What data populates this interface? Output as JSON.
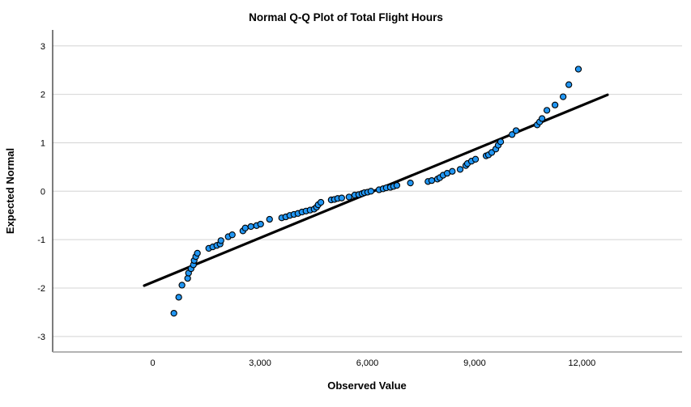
{
  "title": "Normal Q-Q Plot of Total Flight Hours",
  "chart_data": {
    "type": "scatter",
    "title": "Normal Q-Q Plot of Total Flight Hours",
    "xlabel": "Observed Value",
    "ylabel": "Expected Normal",
    "xlim": [
      -2800,
      14800
    ],
    "ylim": [
      -3.32,
      3.33
    ],
    "x_ticks": [
      0,
      3000,
      6000,
      9000,
      12000
    ],
    "x_tick_labels": [
      "0",
      "3,000",
      "6,000",
      "9,000",
      "12,000"
    ],
    "y_ticks": [
      3,
      2,
      1,
      0,
      -1,
      -2,
      -3
    ],
    "y_tick_labels": [
      "3",
      "2",
      "1",
      "0",
      "-1",
      "-2",
      "-3"
    ],
    "grid": "horizontal-only",
    "legend": "none",
    "colors": {
      "point_fill": "#2196f3",
      "point_stroke": "#000000",
      "fit_line": "#000000",
      "gridline": "#d4d4d4",
      "axis_line": "#262626",
      "baseline": "#9a9a9a",
      "background": "#ffffff"
    },
    "fit_line": {
      "x1": -240,
      "y1": -1.95,
      "x2": 12715,
      "y2": 1.99
    },
    "points": [
      [
        590,
        -2.52
      ],
      [
        726,
        -2.19
      ],
      [
        816,
        -1.94
      ],
      [
        975,
        -1.8
      ],
      [
        1000,
        -1.69
      ],
      [
        1070,
        -1.6
      ],
      [
        1135,
        -1.52
      ],
      [
        1157,
        -1.43
      ],
      [
        1202,
        -1.35
      ],
      [
        1247,
        -1.28
      ],
      [
        1565,
        -1.18
      ],
      [
        1678,
        -1.15
      ],
      [
        1791,
        -1.12
      ],
      [
        1882,
        -1.09
      ],
      [
        1905,
        -1.02
      ],
      [
        2110,
        -0.94
      ],
      [
        2222,
        -0.9
      ],
      [
        2520,
        -0.82
      ],
      [
        2585,
        -0.76
      ],
      [
        2744,
        -0.73
      ],
      [
        2902,
        -0.71
      ],
      [
        3015,
        -0.68
      ],
      [
        3265,
        -0.58
      ],
      [
        3605,
        -0.55
      ],
      [
        3719,
        -0.53
      ],
      [
        3832,
        -0.5
      ],
      [
        3946,
        -0.48
      ],
      [
        4059,
        -0.46
      ],
      [
        4172,
        -0.43
      ],
      [
        4285,
        -0.41
      ],
      [
        4399,
        -0.39
      ],
      [
        4512,
        -0.37
      ],
      [
        4580,
        -0.33
      ],
      [
        4625,
        -0.28
      ],
      [
        4700,
        -0.23
      ],
      [
        4989,
        -0.18
      ],
      [
        5080,
        -0.17
      ],
      [
        5170,
        -0.15
      ],
      [
        5283,
        -0.14
      ],
      [
        5487,
        -0.12
      ],
      [
        5646,
        -0.08
      ],
      [
        5759,
        -0.07
      ],
      [
        5850,
        -0.05
      ],
      [
        5918,
        -0.03
      ],
      [
        6009,
        -0.02
      ],
      [
        6100,
        0.0
      ],
      [
        6327,
        0.03
      ],
      [
        6440,
        0.05
      ],
      [
        6530,
        0.07
      ],
      [
        6644,
        0.08
      ],
      [
        6734,
        0.1
      ],
      [
        6825,
        0.12
      ],
      [
        7203,
        0.17
      ],
      [
        7695,
        0.2
      ],
      [
        7800,
        0.22
      ],
      [
        7959,
        0.25
      ],
      [
        8027,
        0.28
      ],
      [
        8117,
        0.33
      ],
      [
        8231,
        0.37
      ],
      [
        8374,
        0.41
      ],
      [
        8594,
        0.45
      ],
      [
        8753,
        0.53
      ],
      [
        8798,
        0.57
      ],
      [
        8911,
        0.62
      ],
      [
        9024,
        0.66
      ],
      [
        9320,
        0.73
      ],
      [
        9387,
        0.75
      ],
      [
        9478,
        0.8
      ],
      [
        9591,
        0.87
      ],
      [
        9659,
        0.95
      ],
      [
        9727,
        1.02
      ],
      [
        10045,
        1.17
      ],
      [
        10158,
        1.25
      ],
      [
        10748,
        1.37
      ],
      [
        10816,
        1.43
      ],
      [
        10884,
        1.5
      ],
      [
        11020,
        1.67
      ],
      [
        11247,
        1.78
      ],
      [
        11474,
        1.95
      ],
      [
        11633,
        2.2
      ],
      [
        11900,
        2.52
      ]
    ]
  }
}
